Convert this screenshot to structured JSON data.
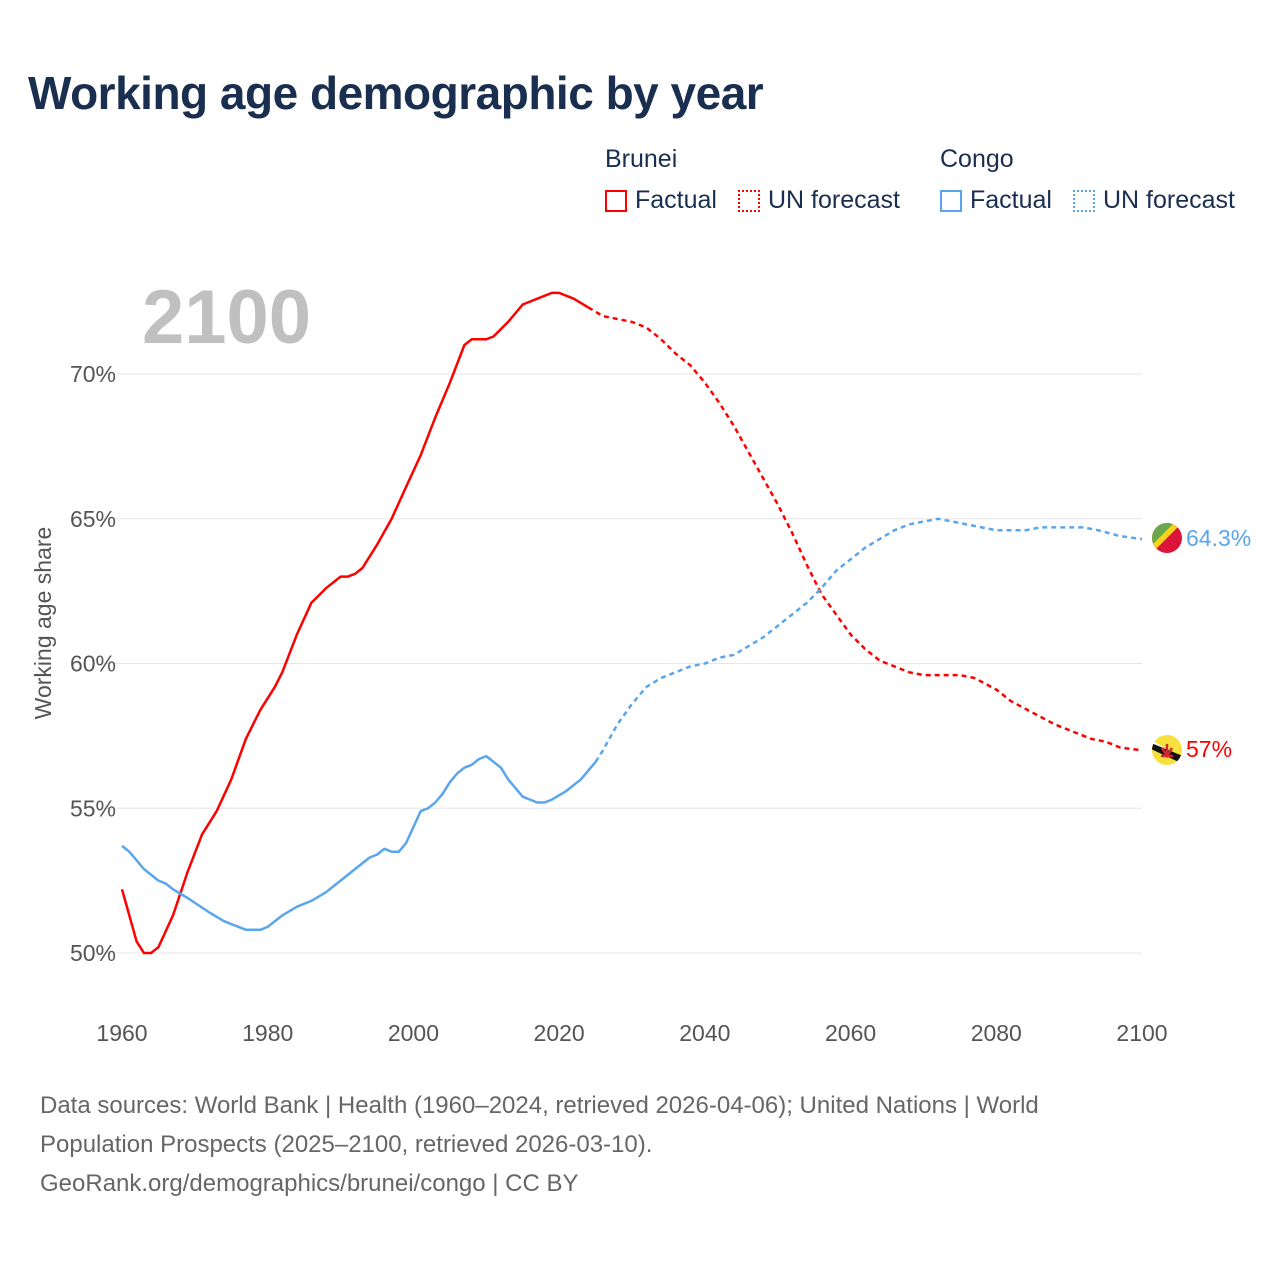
{
  "title": "Working age demographic by year",
  "legend": {
    "groups": [
      {
        "name": "Brunei",
        "factual": "Factual",
        "forecast": "UN forecast",
        "color": "#ff0000"
      },
      {
        "name": "Congo",
        "factual": "Factual",
        "forecast": "UN forecast",
        "color": "#5aa6ec"
      }
    ]
  },
  "footer": {
    "line1": "Data sources: World Bank | Health (1960–2024, retrieved 2026-04-06); United Nations | World",
    "line2": "Population Prospects (2025–2100, retrieved 2026-03-10).",
    "line3": "GeoRank.org/demographics/brunei/congo | CC BY"
  },
  "chart_data": {
    "type": "line",
    "title": "Working age demographic by year",
    "current_year_label": "2100",
    "xlabel": "",
    "ylabel": "Working age share",
    "xlim": [
      1960,
      2100
    ],
    "ylim": [
      50,
      72.9
    ],
    "x_ticks": [
      "1960",
      "1980",
      "2000",
      "2020",
      "2040",
      "2060",
      "2080",
      "2100"
    ],
    "x_tick_values": [
      1960,
      1980,
      2000,
      2020,
      2040,
      2060,
      2080,
      2100
    ],
    "y_ticks": [
      "50%",
      "55%",
      "60%",
      "65%",
      "70%"
    ],
    "y_tick_values": [
      50,
      55,
      60,
      65,
      70
    ],
    "grid": true,
    "series": [
      {
        "name": "Brunei",
        "color": "#ff0000",
        "end_label": "57%",
        "flag": "brunei-flag",
        "factual": [
          [
            1960,
            52.2
          ],
          [
            1962,
            50.4
          ],
          [
            1963,
            50.0
          ],
          [
            1964,
            50.0
          ],
          [
            1965,
            50.2
          ],
          [
            1967,
            51.3
          ],
          [
            1969,
            52.8
          ],
          [
            1971,
            54.1
          ],
          [
            1973,
            54.9
          ],
          [
            1975,
            56.0
          ],
          [
            1977,
            57.4
          ],
          [
            1979,
            58.4
          ],
          [
            1981,
            59.2
          ],
          [
            1982,
            59.7
          ],
          [
            1984,
            61.0
          ],
          [
            1986,
            62.1
          ],
          [
            1988,
            62.6
          ],
          [
            1990,
            63.0
          ],
          [
            1991,
            63.0
          ],
          [
            1992,
            63.1
          ],
          [
            1993,
            63.3
          ],
          [
            1995,
            64.1
          ],
          [
            1997,
            65.0
          ],
          [
            1999,
            66.1
          ],
          [
            2001,
            67.2
          ],
          [
            2003,
            68.5
          ],
          [
            2005,
            69.7
          ],
          [
            2007,
            71.0
          ],
          [
            2008,
            71.2
          ],
          [
            2010,
            71.2
          ],
          [
            2011,
            71.3
          ],
          [
            2013,
            71.8
          ],
          [
            2015,
            72.4
          ],
          [
            2017,
            72.6
          ],
          [
            2019,
            72.8
          ],
          [
            2020,
            72.8
          ],
          [
            2022,
            72.6
          ],
          [
            2024,
            72.3
          ]
        ],
        "forecast": [
          [
            2024,
            72.3
          ],
          [
            2026,
            72.0
          ],
          [
            2028,
            71.9
          ],
          [
            2030,
            71.8
          ],
          [
            2032,
            71.6
          ],
          [
            2034,
            71.2
          ],
          [
            2036,
            70.7
          ],
          [
            2038,
            70.3
          ],
          [
            2040,
            69.7
          ],
          [
            2042,
            69.0
          ],
          [
            2044,
            68.2
          ],
          [
            2046,
            67.3
          ],
          [
            2048,
            66.4
          ],
          [
            2050,
            65.5
          ],
          [
            2052,
            64.5
          ],
          [
            2054,
            63.4
          ],
          [
            2056,
            62.4
          ],
          [
            2058,
            61.7
          ],
          [
            2060,
            61.0
          ],
          [
            2062,
            60.5
          ],
          [
            2064,
            60.1
          ],
          [
            2066,
            59.9
          ],
          [
            2068,
            59.7
          ],
          [
            2070,
            59.6
          ],
          [
            2075,
            59.6
          ],
          [
            2077,
            59.5
          ],
          [
            2080,
            59.1
          ],
          [
            2082,
            58.7
          ],
          [
            2085,
            58.3
          ],
          [
            2088,
            57.9
          ],
          [
            2091,
            57.6
          ],
          [
            2093,
            57.4
          ],
          [
            2095,
            57.3
          ],
          [
            2097,
            57.1
          ],
          [
            2100,
            57.0
          ]
        ]
      },
      {
        "name": "Congo",
        "color": "#5aa6ec",
        "end_label": "64.3%",
        "flag": "congo-flag",
        "factual": [
          [
            1960,
            53.7
          ],
          [
            1961,
            53.5
          ],
          [
            1963,
            52.9
          ],
          [
            1965,
            52.5
          ],
          [
            1966,
            52.4
          ],
          [
            1967,
            52.2
          ],
          [
            1969,
            51.9
          ],
          [
            1972,
            51.4
          ],
          [
            1974,
            51.1
          ],
          [
            1977,
            50.8
          ],
          [
            1979,
            50.8
          ],
          [
            1980,
            50.9
          ],
          [
            1982,
            51.3
          ],
          [
            1984,
            51.6
          ],
          [
            1986,
            51.8
          ],
          [
            1988,
            52.1
          ],
          [
            1990,
            52.5
          ],
          [
            1992,
            52.9
          ],
          [
            1994,
            53.3
          ],
          [
            1995,
            53.4
          ],
          [
            1996,
            53.6
          ],
          [
            1997,
            53.5
          ],
          [
            1998,
            53.5
          ],
          [
            1999,
            53.8
          ],
          [
            2001,
            54.9
          ],
          [
            2002,
            55.0
          ],
          [
            2003,
            55.2
          ],
          [
            2004,
            55.5
          ],
          [
            2005,
            55.9
          ],
          [
            2006,
            56.2
          ],
          [
            2007,
            56.4
          ],
          [
            2008,
            56.5
          ],
          [
            2009,
            56.7
          ],
          [
            2010,
            56.8
          ],
          [
            2012,
            56.4
          ],
          [
            2013,
            56.0
          ],
          [
            2015,
            55.4
          ],
          [
            2017,
            55.2
          ],
          [
            2018,
            55.2
          ],
          [
            2019,
            55.3
          ],
          [
            2021,
            55.6
          ],
          [
            2023,
            56.0
          ],
          [
            2024,
            56.3
          ],
          [
            2025,
            56.6
          ]
        ],
        "forecast": [
          [
            2025,
            56.6
          ],
          [
            2026,
            57.0
          ],
          [
            2028,
            57.9
          ],
          [
            2030,
            58.6
          ],
          [
            2032,
            59.2
          ],
          [
            2034,
            59.5
          ],
          [
            2036,
            59.7
          ],
          [
            2038,
            59.9
          ],
          [
            2040,
            60.0
          ],
          [
            2042,
            60.2
          ],
          [
            2044,
            60.3
          ],
          [
            2046,
            60.6
          ],
          [
            2048,
            60.9
          ],
          [
            2050,
            61.3
          ],
          [
            2052,
            61.7
          ],
          [
            2054,
            62.1
          ],
          [
            2056,
            62.6
          ],
          [
            2058,
            63.2
          ],
          [
            2060,
            63.6
          ],
          [
            2062,
            64.0
          ],
          [
            2064,
            64.3
          ],
          [
            2066,
            64.6
          ],
          [
            2068,
            64.8
          ],
          [
            2070,
            64.9
          ],
          [
            2072,
            65.0
          ],
          [
            2074,
            64.9
          ],
          [
            2076,
            64.8
          ],
          [
            2078,
            64.7
          ],
          [
            2080,
            64.6
          ],
          [
            2084,
            64.6
          ],
          [
            2086,
            64.7
          ],
          [
            2092,
            64.7
          ],
          [
            2094,
            64.6
          ],
          [
            2097,
            64.4
          ],
          [
            2100,
            64.3
          ]
        ]
      }
    ]
  }
}
